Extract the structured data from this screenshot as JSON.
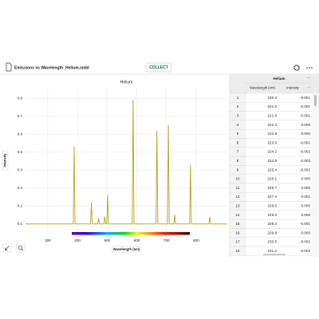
{
  "app": {
    "file_name": "Emissions vs Wavelength_Helium.smbl",
    "collect_button": "COLLECT"
  },
  "chart_data": {
    "type": "line",
    "title": "Helium",
    "x_label": "Wavelength (nm)",
    "y_label": "Intensity",
    "x": [
      225,
      385.9,
      388.9,
      391.9,
      444.1,
      447.1,
      450.1,
      468.3,
      471.3,
      474.3,
      489.2,
      492.2,
      495.2,
      498.6,
      501.6,
      504.6,
      584.6,
      587.6,
      590.6,
      664.8,
      667.8,
      670.8,
      703.5,
      706.5,
      709.5,
      725.1,
      728.1,
      731.1,
      778,
      781,
      784,
      843,
      846,
      849,
      905
    ],
    "values": [
      0.1,
      0.1,
      0.53,
      0.1,
      0.1,
      0.22,
      0.1,
      0.1,
      0.13,
      0.1,
      0.1,
      0.14,
      0.1,
      0.1,
      0.26,
      0.1,
      0.1,
      0.79,
      0.1,
      0.1,
      0.62,
      0.1,
      0.1,
      0.65,
      0.1,
      0.1,
      0.15,
      0.1,
      0.1,
      0.43,
      0.1,
      0.1,
      0.14,
      0.1,
      0.1
    ],
    "color": "#b3a51c",
    "xlim": [
      225,
      905
    ],
    "xticks": [
      300,
      400,
      500,
      600,
      700,
      800
    ],
    "ylim": [
      0.05,
      0.86
    ],
    "yticks": [
      0.1,
      0.2,
      0.3,
      0.4,
      0.5,
      0.6,
      0.7,
      0.8
    ],
    "grid": true
  },
  "table": {
    "title": "Helium",
    "columns": [
      "Wavelength (nm)",
      "Intensity"
    ],
    "rows": [
      [
        "1",
        "220.3",
        "-0.001"
      ],
      [
        "2",
        "221.0",
        "-0.001"
      ],
      [
        "3",
        "221.6",
        "-0.001"
      ],
      [
        "4",
        "222.3",
        "0.000"
      ],
      [
        "5",
        "222.9",
        "0.000"
      ],
      [
        "6",
        "223.5",
        "-0.001"
      ],
      [
        "7",
        "224.2",
        "-0.002"
      ],
      [
        "8",
        "224.8",
        "-0.003"
      ],
      [
        "9",
        "225.4",
        "-0.002"
      ],
      [
        "10",
        "226.1",
        "0.000"
      ],
      [
        "11",
        "226.7",
        "0.000"
      ],
      [
        "12",
        "227.4",
        "0.001"
      ],
      [
        "13",
        "228.0",
        "0.000"
      ],
      [
        "14",
        "228.6",
        "0.000"
      ],
      [
        "15",
        "229.3",
        "-0.001"
      ],
      [
        "16",
        "229.9",
        "0.000"
      ],
      [
        "17",
        "230.5",
        "-0.002"
      ],
      [
        "18",
        "231.2",
        "-0.003"
      ]
    ]
  }
}
